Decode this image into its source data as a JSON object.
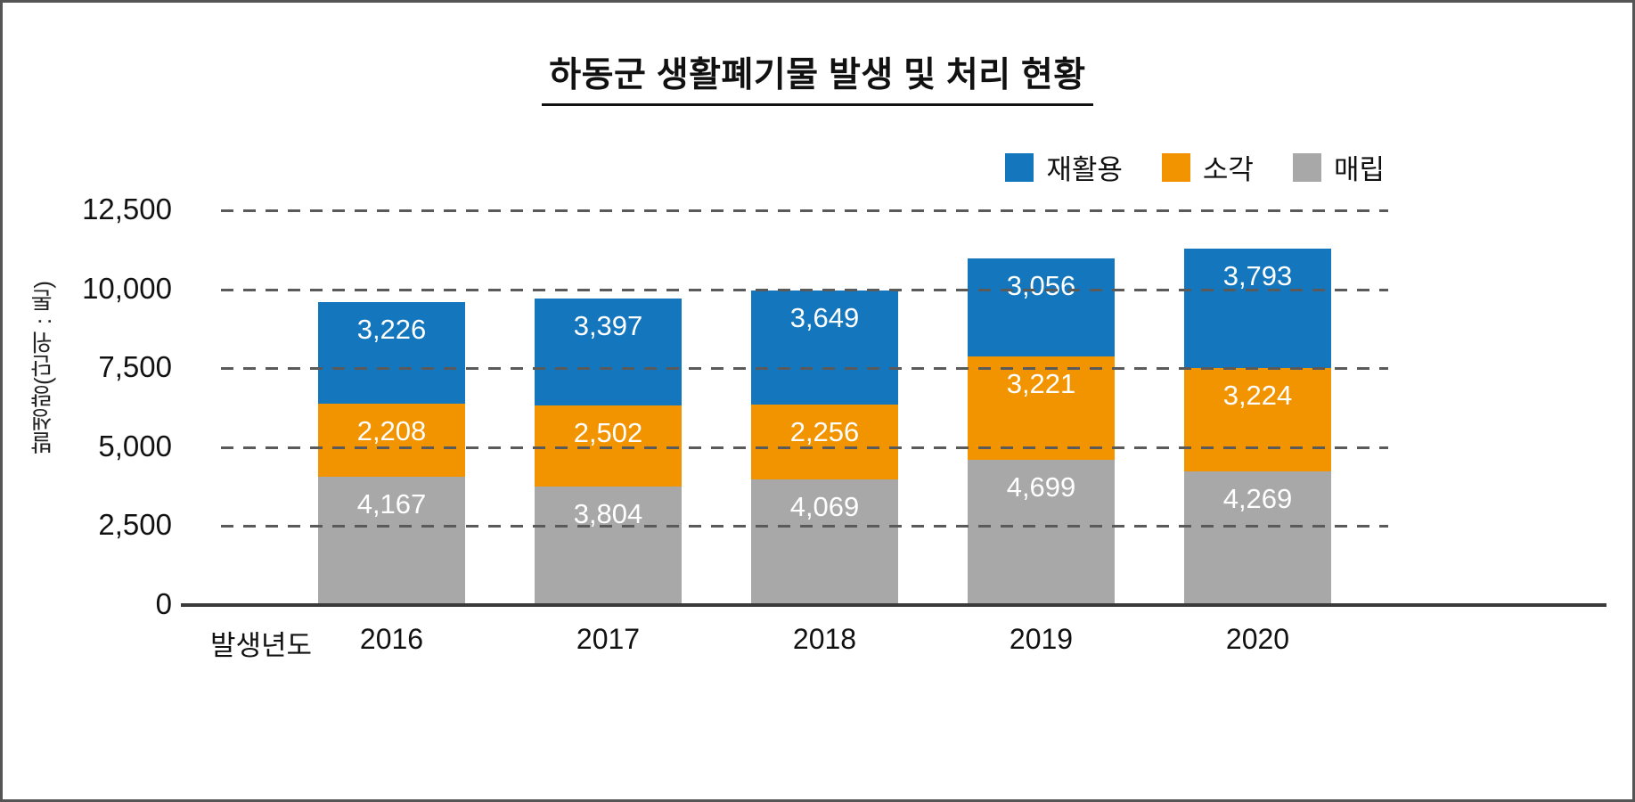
{
  "chart_data": {
    "type": "bar",
    "stacked": true,
    "title": "하동군 생활폐기물 발생 및 처리 현황",
    "ylabel": "발생량(단위 : 톤)",
    "xlabel": "발생년도",
    "categories": [
      "2016",
      "2017",
      "2018",
      "2019",
      "2020"
    ],
    "series": [
      {
        "name": "매립",
        "color": "#a8a8a8",
        "values": [
          4167,
          3804,
          4069,
          4699,
          4269
        ]
      },
      {
        "name": "소각",
        "color": "#f29400",
        "values": [
          2208,
          2502,
          2256,
          3221,
          3224
        ]
      },
      {
        "name": "재활용",
        "color": "#1477bd",
        "values": [
          3226,
          3397,
          3649,
          3056,
          3793
        ]
      }
    ],
    "legend_order": [
      "재활용",
      "소각",
      "매립"
    ],
    "ylim": [
      0,
      12500
    ],
    "yticks": [
      0,
      2500,
      5000,
      7500,
      10000,
      12500
    ],
    "grid": "dashed-horizontal",
    "legend_position": "top-right",
    "value_label_color": "#ffffff"
  }
}
